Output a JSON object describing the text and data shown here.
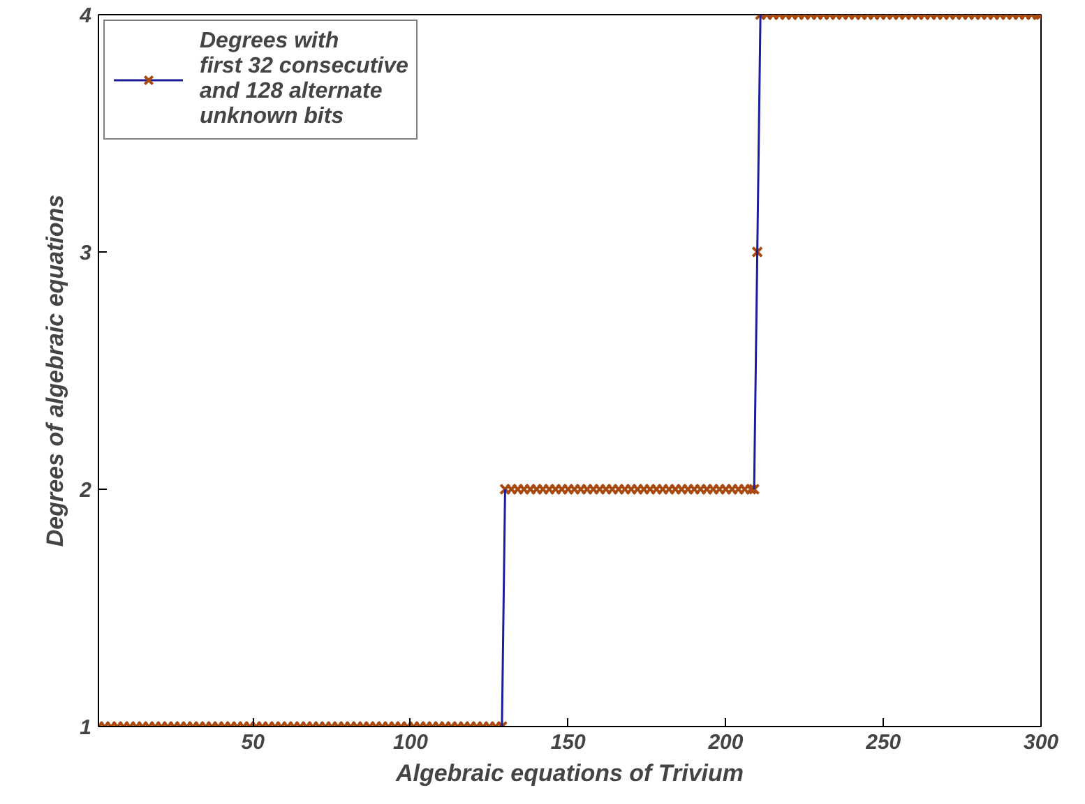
{
  "chart_data": {
    "type": "line",
    "xlabel": "Algebraic equations of Trivium",
    "ylabel": "Degrees of algebraic equations",
    "xlim": [
      1,
      300
    ],
    "ylim": [
      1,
      4
    ],
    "xticks": [
      50,
      100,
      150,
      200,
      250,
      300
    ],
    "yticks": [
      1,
      2,
      3,
      4
    ],
    "grid": false,
    "legend": "top left",
    "series": [
      {
        "type": "scatter",
        "marker": "cross",
        "color": "#a84a10",
        "x": [
          1,
          3,
          5,
          7,
          9,
          11,
          13,
          15,
          17,
          19,
          21,
          23,
          25,
          27,
          29,
          31,
          33,
          35,
          37,
          39,
          41,
          43,
          45,
          47,
          49,
          51,
          53,
          55,
          57,
          59,
          61,
          63,
          65,
          67,
          69,
          71,
          73,
          75,
          77,
          79,
          81,
          83,
          85,
          87,
          89,
          91,
          93,
          95,
          97,
          99,
          101,
          103,
          105,
          107,
          109,
          111,
          113,
          115,
          117,
          119,
          121,
          123,
          125,
          127,
          129,
          130,
          132,
          134,
          136,
          138,
          140,
          142,
          144,
          146,
          148,
          150,
          152,
          154,
          156,
          158,
          160,
          162,
          164,
          166,
          168,
          170,
          172,
          174,
          176,
          178,
          180,
          182,
          184,
          186,
          188,
          190,
          192,
          194,
          196,
          198,
          200,
          202,
          204,
          206,
          208,
          209,
          210,
          211,
          213,
          215,
          217,
          219,
          221,
          223,
          225,
          227,
          229,
          231,
          233,
          235,
          237,
          239,
          241,
          243,
          245,
          247,
          249,
          251,
          253,
          255,
          257,
          259,
          261,
          263,
          265,
          267,
          269,
          271,
          273,
          275,
          277,
          279,
          281,
          283,
          285,
          287,
          289,
          291,
          293,
          295,
          297,
          299,
          300
        ],
        "values": [
          1,
          1,
          1,
          1,
          1,
          1,
          1,
          1,
          1,
          1,
          1,
          1,
          1,
          1,
          1,
          1,
          1,
          1,
          1,
          1,
          1,
          1,
          1,
          1,
          1,
          1,
          1,
          1,
          1,
          1,
          1,
          1,
          1,
          1,
          1,
          1,
          1,
          1,
          1,
          1,
          1,
          1,
          1,
          1,
          1,
          1,
          1,
          1,
          1,
          1,
          1,
          1,
          1,
          1,
          1,
          1,
          1,
          1,
          1,
          1,
          1,
          1,
          1,
          1,
          1,
          2,
          2,
          2,
          2,
          2,
          2,
          2,
          2,
          2,
          2,
          2,
          2,
          2,
          2,
          2,
          2,
          2,
          2,
          2,
          2,
          2,
          2,
          2,
          2,
          2,
          2,
          2,
          2,
          2,
          2,
          2,
          2,
          2,
          2,
          2,
          2,
          2,
          2,
          2,
          2,
          2,
          3,
          4,
          4,
          4,
          4,
          4,
          4,
          4,
          4,
          4,
          4,
          4,
          4,
          4,
          4,
          4,
          4,
          4,
          4,
          4,
          4,
          4,
          4,
          4,
          4,
          4,
          4,
          4,
          4,
          4,
          4,
          4,
          4,
          4,
          4,
          4,
          4,
          4,
          4,
          4,
          4,
          4,
          4,
          4,
          4,
          4,
          4
        ]
      },
      {
        "name": "Degrees with\nfirst 32 consecutive\nand 128 alternate\nunknown bits",
        "marker": "none",
        "color": "#1c1c9c",
        "x": [
          129,
          130,
          170,
          209,
          210,
          211
        ],
        "values": [
          1,
          2,
          null,
          2,
          3,
          4
        ]
      }
    ]
  }
}
